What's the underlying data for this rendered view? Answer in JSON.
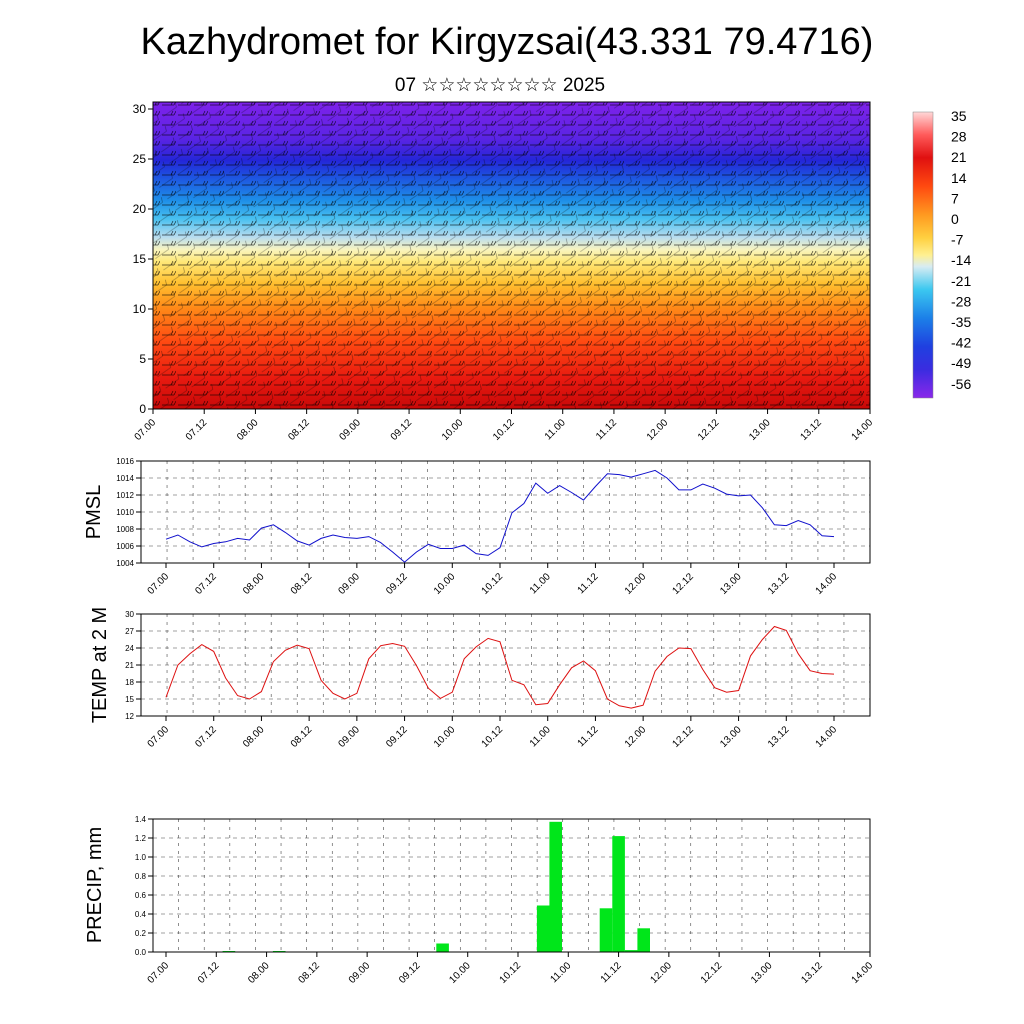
{
  "header": {
    "title": "Kazhydromet for Kirgyzsai(43.331 79.4716)",
    "subtitle": "07 ☆☆☆☆☆☆☆☆ 2025"
  },
  "time_ticks": [
    "07.00",
    "07.12",
    "08.00",
    "08.12",
    "09.00",
    "09.12",
    "10.00",
    "10.12",
    "11.00",
    "11.12",
    "12.00",
    "12.12",
    "13.00",
    "13.12",
    "14.00"
  ],
  "chart_data": [
    {
      "type": "heatmap",
      "title": "",
      "xlabel": "",
      "ylabel": "",
      "x_ticks": [
        "07.00",
        "07.12",
        "08.00",
        "08.12",
        "09.00",
        "09.12",
        "10.00",
        "10.12",
        "11.00",
        "11.12",
        "12.00",
        "12.12",
        "13.00",
        "13.12",
        "14.00"
      ],
      "y_ticks": [
        0,
        5,
        10,
        15,
        20,
        25,
        30
      ],
      "ylim": [
        0,
        31
      ],
      "colorbar_labels": [
        "35",
        "28",
        "21",
        "14",
        "7",
        "0",
        "-7",
        "-14",
        "-21",
        "-28",
        "-35",
        "-42",
        "-49",
        "-56"
      ],
      "colors": {
        "ramp": [
          "#7a20e8",
          "#3a2ce0",
          "#1f4fe0",
          "#1c90e8",
          "#3cc8f0",
          "#bfe4ee",
          "#fff090",
          "#ffd840",
          "#ffaa20",
          "#ff6a10",
          "#ee2a10",
          "#d81010",
          "#ff5050",
          "#ffd0d0"
        ]
      },
      "overlay": "wind barbs"
    },
    {
      "type": "line",
      "ylabel": "PMSL",
      "ylim": [
        1004,
        1016
      ],
      "y_ticks": [
        1004,
        1006,
        1008,
        1010,
        1012,
        1014,
        1016
      ],
      "x_ticks": [
        "07.00",
        "07.12",
        "08.00",
        "08.12",
        "09.00",
        "09.12",
        "10.00",
        "10.12",
        "11.00",
        "11.12",
        "12.00",
        "12.12",
        "13.00",
        "13.12",
        "14.00"
      ],
      "x": [
        0,
        3,
        6,
        9,
        12,
        15,
        18,
        21,
        24,
        27,
        30,
        33,
        36,
        39,
        42,
        45,
        48,
        51,
        54,
        57,
        60,
        63,
        66,
        69,
        72,
        75,
        78,
        81,
        84,
        87,
        90,
        93,
        96,
        99,
        102,
        105,
        108,
        111,
        114,
        117,
        120,
        123,
        126,
        129,
        132,
        135,
        138,
        141,
        144,
        147,
        150,
        153,
        156,
        159,
        162,
        165,
        168
      ],
      "values": [
        1006.8,
        1007.3,
        1006.5,
        1005.9,
        1006.3,
        1006.5,
        1006.9,
        1006.7,
        1008.1,
        1008.5,
        1007.6,
        1006.6,
        1006.1,
        1006.9,
        1007.3,
        1007.0,
        1006.9,
        1007.1,
        1006.4,
        1005.3,
        1004.1,
        1005.3,
        1006.2,
        1005.7,
        1005.7,
        1006.1,
        1005.1,
        1004.9,
        1005.8,
        1009.9,
        1011.0,
        1013.4,
        1012.2,
        1013.1,
        1012.3,
        1011.4,
        1013.0,
        1014.5,
        1014.4,
        1014.1,
        1014.5,
        1014.9,
        1014.0,
        1012.6,
        1012.6,
        1013.3,
        1012.8,
        1012.1,
        1011.9,
        1012.0,
        1010.5,
        1008.5,
        1008.4,
        1009.0,
        1008.5,
        1007.2,
        1007.1
      ],
      "colors": {
        "line": "#1010cc"
      }
    },
    {
      "type": "line",
      "ylabel": "TEMP at 2 M",
      "ylim": [
        12,
        30
      ],
      "y_ticks": [
        12,
        15,
        18,
        21,
        24,
        27,
        30
      ],
      "x_ticks": [
        "07.00",
        "07.12",
        "08.00",
        "08.12",
        "09.00",
        "09.12",
        "10.00",
        "10.12",
        "11.00",
        "11.12",
        "12.00",
        "12.12",
        "13.00",
        "13.12",
        "14.00"
      ],
      "x": [
        0,
        3,
        6,
        9,
        12,
        15,
        18,
        21,
        24,
        27,
        30,
        33,
        36,
        39,
        42,
        45,
        48,
        51,
        54,
        57,
        60,
        63,
        66,
        69,
        72,
        75,
        78,
        81,
        84,
        87,
        90,
        93,
        96,
        99,
        102,
        105,
        108,
        111,
        114,
        117,
        120,
        123,
        126,
        129,
        132,
        135,
        138,
        141,
        144,
        147,
        150,
        153,
        156,
        159,
        162,
        165,
        168
      ],
      "values": [
        15.3,
        21.0,
        23.0,
        24.6,
        23.4,
        18.7,
        15.6,
        15.0,
        16.3,
        21.6,
        23.6,
        24.5,
        23.9,
        18.3,
        16.0,
        15.0,
        16.0,
        22.1,
        24.4,
        24.8,
        24.3,
        20.9,
        16.9,
        15.1,
        16.2,
        22.1,
        24.2,
        25.7,
        25.1,
        18.3,
        17.5,
        14.0,
        14.2,
        17.5,
        20.5,
        21.7,
        20.0,
        15.0,
        13.8,
        13.4,
        13.9,
        19.9,
        22.5,
        24.0,
        23.9,
        20.2,
        17.0,
        16.2,
        16.5,
        22.6,
        25.5,
        27.8,
        27.1,
        23.0,
        20.0,
        19.5,
        19.4
      ],
      "colors": {
        "line": "#dd1010"
      }
    },
    {
      "type": "bar",
      "ylabel": "PRECIP, mm",
      "ylim": [
        0,
        1.4
      ],
      "y_ticks": [
        0.0,
        0.2,
        0.4,
        0.6,
        0.8,
        1.0,
        1.2,
        1.4
      ],
      "y_tick_labels": [
        "0.0",
        "0.2",
        "0.4",
        "0.6",
        "0.8",
        "1.0",
        "1.2",
        "1.4"
      ],
      "x_ticks": [
        "07.00",
        "07.12",
        "08.00",
        "08.12",
        "09.00",
        "09.12",
        "10.00",
        "10.12",
        "11.00",
        "11.12",
        "12.00",
        "12.12",
        "13.00",
        "13.12",
        "14.00"
      ],
      "x": [
        15,
        27,
        66,
        90,
        93,
        105,
        108,
        111,
        114
      ],
      "values": [
        0.01,
        0.01,
        0.09,
        0.49,
        1.37,
        0.46,
        1.22,
        0.02,
        0.25
      ],
      "colors": {
        "bar": "#00e61a"
      }
    }
  ]
}
